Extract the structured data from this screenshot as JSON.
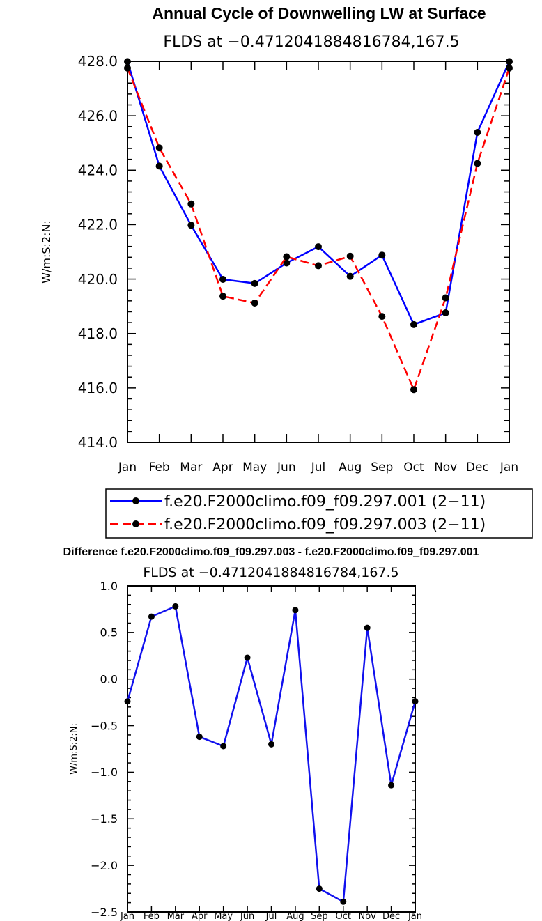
{
  "colors": {
    "series1": "#0000ff",
    "series2": "#ff0000",
    "marker": "#000000",
    "axis": "#000000"
  },
  "chart_data": [
    {
      "type": "line",
      "title": "Annual Cycle of Downwelling LW at Surface",
      "subtitle": "FLDS at −0.4712041884816784,167.5",
      "xlabel": "",
      "ylabel": "W/m:S:2:N:",
      "ylim": [
        414.0,
        428.0
      ],
      "yticks": [
        "428.0",
        "426.0",
        "424.0",
        "422.0",
        "420.0",
        "418.0",
        "416.0",
        "414.0"
      ],
      "categories": [
        "Jan",
        "Feb",
        "Mar",
        "Apr",
        "May",
        "Jun",
        "Jul",
        "Aug",
        "Sep",
        "Oct",
        "Nov",
        "Dec",
        "Jan"
      ],
      "series": [
        {
          "name": "f.e20.F2000climo.f09_f09.297.001 (2−11)",
          "style": "solid",
          "values": [
            427.99,
            424.15,
            421.98,
            419.99,
            419.84,
            420.59,
            421.19,
            420.1,
            420.88,
            418.33,
            418.76,
            425.39,
            427.99
          ]
        },
        {
          "name": "f.e20.F2000climo.f09_f09.297.003 (2−11)",
          "style": "dashed",
          "values": [
            427.75,
            424.82,
            422.76,
            419.37,
            419.12,
            420.82,
            420.49,
            420.84,
            418.63,
            415.94,
            419.31,
            424.25,
            427.75
          ]
        }
      ]
    },
    {
      "type": "line",
      "title": "Difference f.e20.F2000climo.f09_f09.297.003 - f.e20.F2000climo.f09_f09.297.001",
      "subtitle": "FLDS at −0.4712041884816784,167.5",
      "xlabel": "",
      "ylabel": "W/m:S:2:N:",
      "ylim": [
        -2.5,
        1.0
      ],
      "yticks": [
        "1.0",
        "0.5",
        "0.0",
        "−0.5",
        "−1.0",
        "−1.5",
        "−2.0",
        "−2.5"
      ],
      "categories": [
        "Jan",
        "Feb",
        "Mar",
        "Apr",
        "May",
        "Jun",
        "Jul",
        "Aug",
        "Sep",
        "Oct",
        "Nov",
        "Dec",
        "Jan"
      ],
      "series": [
        {
          "name": "difference",
          "style": "solid",
          "values": [
            -0.24,
            0.67,
            0.78,
            -0.62,
            -0.72,
            0.23,
            -0.7,
            0.74,
            -2.25,
            -2.39,
            0.55,
            -1.14,
            -0.24
          ]
        }
      ]
    }
  ]
}
